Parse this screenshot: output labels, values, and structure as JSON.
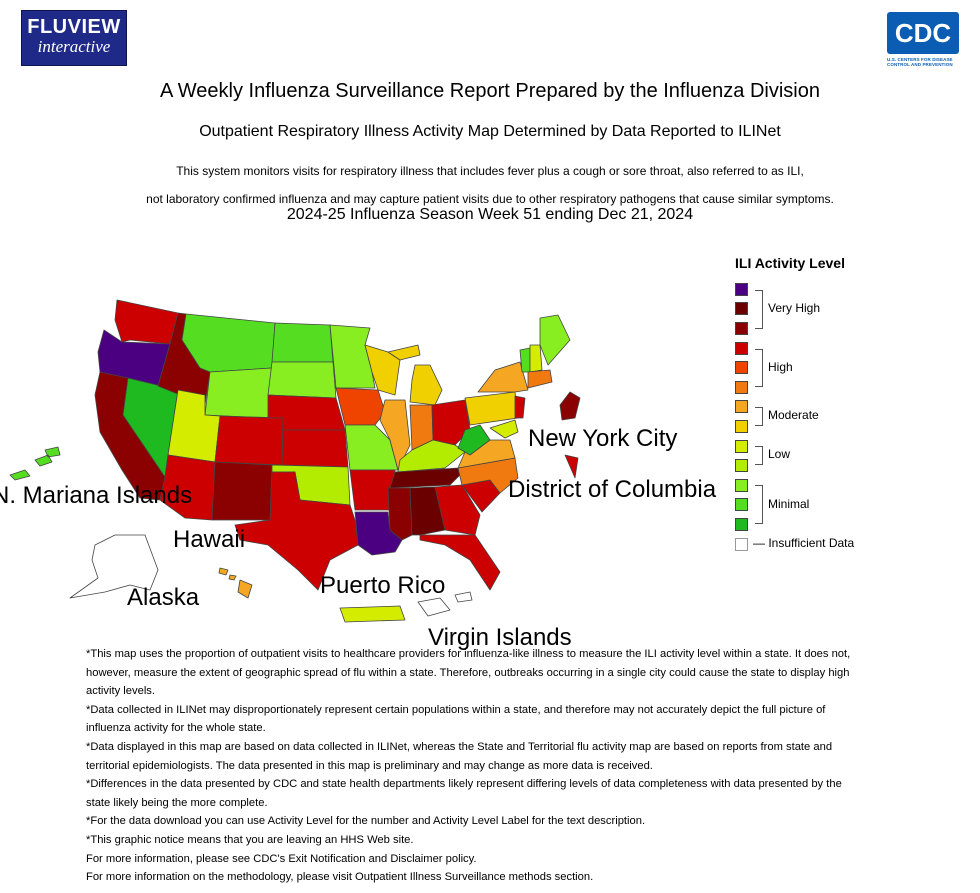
{
  "header": {
    "logo_line1": "FLUVIEW",
    "logo_line2": "interactive",
    "cdc_logo": "CDC",
    "cdc_sub1": "U.S. CENTERS FOR DISEASE",
    "cdc_sub2": "CONTROL AND PREVENTION"
  },
  "titles": {
    "main": "A Weekly Influenza Surveillance Report Prepared by the Influenza Division",
    "sub": "Outpatient Respiratory Illness Activity Map Determined by Data Reported to ILINet",
    "desc1": "This system monitors visits for respiratory illness that includes fever plus a cough or sore throat, also referred to as ILI,",
    "desc2": "not laboratory confirmed influenza and may capture patient visits due to other respiratory pathogens that cause similar symptoms.",
    "week": "2024-25 Influenza Season Week 51 ending Dec 21, 2024"
  },
  "map_labels": {
    "nyc": "New York City",
    "dc": "District of Columbia",
    "nmi": "N. Mariana Islands",
    "hawaii": "Hawaii",
    "alaska": "Alaska",
    "pr": "Puerto Rico",
    "vi": "Virgin Islands"
  },
  "legend": {
    "title": "ILI Activity Level",
    "groups": [
      "Very High",
      "High",
      "Moderate",
      "Low",
      "Minimal"
    ],
    "insufficient": "— Insufficient Data",
    "colors": [
      "#4b0082",
      "#6b0000",
      "#8b0000",
      "#cc0000",
      "#ee4400",
      "#f07a10",
      "#f5a623",
      "#f0d000",
      "#d4ec00",
      "#b3ec00",
      "#88ee22",
      "#55dd22",
      "#1fba1f",
      "#ffffff"
    ]
  },
  "notes": [
    "*This map uses the proportion of outpatient visits to healthcare providers for influenza-like illness to measure the ILI activity level within a state. It does not, however, measure the extent of geographic spread of flu within a state. Therefore, outbreaks occurring in a single city could cause the state to display high activity levels.",
    "*Data collected in ILINet may disproportionately represent certain populations within a state, and therefore may not accurately depict the full picture of influenza activity for the whole state.",
    "*Data displayed in this map are based on data collected in ILINet, whereas the State and Territorial flu activity map are based on reports from state and territorial epidemiologists. The data presented in this map is preliminary and may change as more data is received.",
    "*Differences in the data presented by CDC and state health departments likely represent differing levels of data completeness with data presented by the state likely being the more complete.",
    "*For the data download you can use Activity Level for the number and Activity Level Label for the text description.",
    "*This graphic notice means that you are leaving an HHS Web site.",
    "For more information, please see CDC's Exit Notification and Disclaimer policy.",
    "For more information on the methodology, please visit Outpatient Illness Surveillance methods section."
  ]
}
